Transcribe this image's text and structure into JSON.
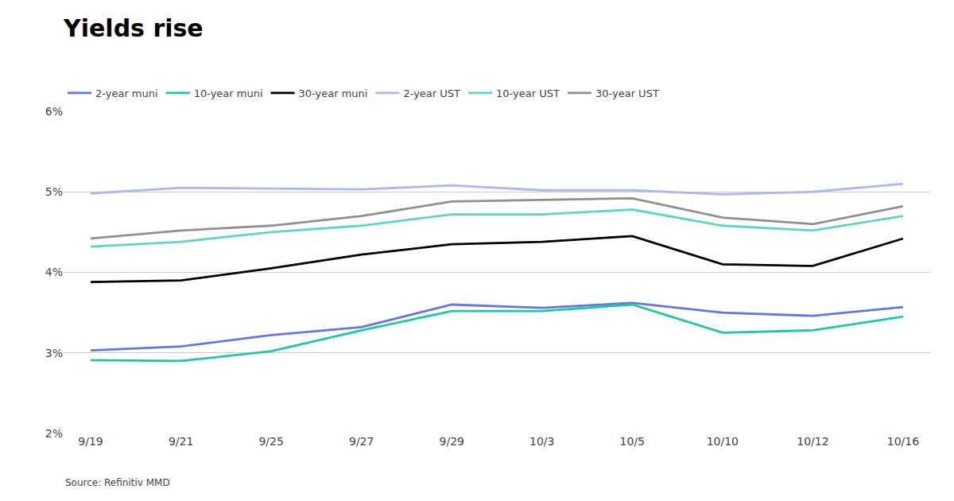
{
  "chart_data": {
    "type": "line",
    "title": "Yields rise",
    "annotations": [
      "Source: Refinitiv MMD"
    ],
    "categories": [
      "9/19",
      "9/21",
      "9/25",
      "9/27",
      "9/29",
      "10/3",
      "10/5",
      "10/10",
      "10/12",
      "10/16"
    ],
    "series": [
      {
        "name": "2-year muni",
        "color": "#6475e8",
        "values": [
          3.03,
          3.08,
          3.22,
          3.32,
          3.6,
          3.56,
          3.62,
          3.5,
          3.46,
          3.57
        ]
      },
      {
        "name": "10-year muni",
        "color": "#1ec8a0",
        "values": [
          2.91,
          2.9,
          3.02,
          3.28,
          3.52,
          3.52,
          3.6,
          3.25,
          3.28,
          3.45
        ]
      },
      {
        "name": "30-year muni",
        "color": "#000000",
        "values": [
          3.88,
          3.9,
          4.05,
          4.22,
          4.35,
          4.38,
          4.45,
          4.1,
          4.08,
          4.42
        ]
      },
      {
        "name": "2-year UST",
        "color": "#a8b8f8",
        "values": [
          4.98,
          5.05,
          5.04,
          5.03,
          5.08,
          5.02,
          5.02,
          4.97,
          5.0,
          5.1
        ]
      },
      {
        "name": "10-year UST",
        "color": "#5dd8c0",
        "values": [
          4.32,
          4.38,
          4.5,
          4.58,
          4.72,
          4.72,
          4.78,
          4.58,
          4.52,
          4.7
        ]
      },
      {
        "name": "30-year UST",
        "color": "#909090",
        "values": [
          4.42,
          4.52,
          4.58,
          4.7,
          4.88,
          4.9,
          4.92,
          4.68,
          4.6,
          4.82
        ]
      }
    ],
    "ylim": [
      2,
      6
    ],
    "yticks": [
      {
        "value": 2,
        "label": "2%"
      },
      {
        "value": 3,
        "label": "3%"
      },
      {
        "value": 4,
        "label": "4%"
      },
      {
        "value": 5,
        "label": "5%"
      },
      {
        "value": 6,
        "label": "6%"
      }
    ],
    "grid": "y",
    "legend": "top left"
  }
}
